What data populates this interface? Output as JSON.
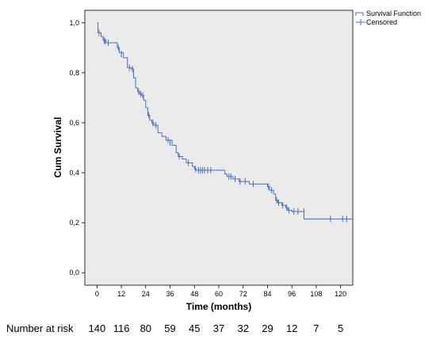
{
  "chart_data": {
    "type": "line",
    "subtype": "kaplan-meier",
    "title": "",
    "xlabel": "Time (months)",
    "ylabel": "Cum Survival",
    "xlim": [
      -6,
      126
    ],
    "ylim": [
      -0.05,
      1.05
    ],
    "x_ticks": [
      0,
      12,
      24,
      36,
      48,
      60,
      72,
      84,
      96,
      108,
      120
    ],
    "x_tick_labels": [
      "0",
      "12",
      "24",
      "36",
      "48",
      "60",
      "72",
      "84",
      "96",
      "108",
      "120"
    ],
    "y_ticks": [
      0.0,
      0.2,
      0.4,
      0.6,
      0.8,
      1.0
    ],
    "y_tick_labels": [
      "0,0",
      "0,2",
      "0,4",
      "0,6",
      "0,8",
      "1,0"
    ],
    "plot_background": "#ebebeb",
    "grid": false,
    "legend_position": "top-right",
    "series": [
      {
        "name": "Survival Function",
        "color": "#4a6fb5",
        "steps": [
          [
            0,
            1.0
          ],
          [
            0.5,
            0.96
          ],
          [
            2,
            0.945
          ],
          [
            3,
            0.93
          ],
          [
            4.5,
            0.92
          ],
          [
            10,
            0.9
          ],
          [
            11,
            0.88
          ],
          [
            13,
            0.86
          ],
          [
            15,
            0.82
          ],
          [
            17,
            0.815
          ],
          [
            18,
            0.78
          ],
          [
            19,
            0.74
          ],
          [
            20,
            0.725
          ],
          [
            21,
            0.715
          ],
          [
            22,
            0.71
          ],
          [
            23,
            0.69
          ],
          [
            24,
            0.66
          ],
          [
            25,
            0.63
          ],
          [
            26,
            0.61
          ],
          [
            27,
            0.6
          ],
          [
            28,
            0.59
          ],
          [
            30,
            0.56
          ],
          [
            32,
            0.545
          ],
          [
            34,
            0.53
          ],
          [
            37,
            0.51
          ],
          [
            39,
            0.48
          ],
          [
            40,
            0.465
          ],
          [
            42,
            0.455
          ],
          [
            44,
            0.44
          ],
          [
            47,
            0.425
          ],
          [
            48,
            0.415
          ],
          [
            49,
            0.41
          ],
          [
            63,
            0.395
          ],
          [
            64,
            0.385
          ],
          [
            67,
            0.375
          ],
          [
            70,
            0.365
          ],
          [
            75,
            0.355
          ],
          [
            84,
            0.345
          ],
          [
            85,
            0.33
          ],
          [
            87,
            0.315
          ],
          [
            88,
            0.29
          ],
          [
            89,
            0.28
          ],
          [
            91,
            0.27
          ],
          [
            93,
            0.26
          ],
          [
            94,
            0.25
          ],
          [
            96,
            0.245
          ],
          [
            102,
            0.215
          ],
          [
            126,
            0.215
          ]
        ]
      },
      {
        "name": "Censored",
        "color": "#4a6fb5",
        "points": [
          [
            1,
            0.96
          ],
          [
            3.5,
            0.93
          ],
          [
            4,
            0.925
          ],
          [
            5.5,
            0.92
          ],
          [
            10.5,
            0.9
          ],
          [
            12,
            0.875
          ],
          [
            16,
            0.82
          ],
          [
            17.5,
            0.815
          ],
          [
            20.5,
            0.725
          ],
          [
            21.5,
            0.715
          ],
          [
            22.5,
            0.71
          ],
          [
            25.5,
            0.63
          ],
          [
            27.5,
            0.6
          ],
          [
            29,
            0.59
          ],
          [
            35,
            0.53
          ],
          [
            36,
            0.52
          ],
          [
            40.5,
            0.465
          ],
          [
            45,
            0.44
          ],
          [
            48.5,
            0.415
          ],
          [
            50,
            0.41
          ],
          [
            51,
            0.41
          ],
          [
            52,
            0.41
          ],
          [
            53,
            0.41
          ],
          [
            54.5,
            0.41
          ],
          [
            56,
            0.41
          ],
          [
            65,
            0.385
          ],
          [
            66,
            0.385
          ],
          [
            68,
            0.375
          ],
          [
            70.5,
            0.365
          ],
          [
            73,
            0.365
          ],
          [
            77,
            0.355
          ],
          [
            84.5,
            0.345
          ],
          [
            86,
            0.33
          ],
          [
            88.5,
            0.29
          ],
          [
            89.5,
            0.28
          ],
          [
            91.5,
            0.27
          ],
          [
            93.5,
            0.26
          ],
          [
            94.5,
            0.25
          ],
          [
            97,
            0.245
          ],
          [
            99,
            0.245
          ],
          [
            102,
            0.245
          ],
          [
            115,
            0.215
          ],
          [
            121,
            0.215
          ],
          [
            123,
            0.215
          ]
        ]
      }
    ],
    "risk_table": {
      "title": "Number at risk",
      "times": [
        0,
        12,
        24,
        36,
        48,
        60,
        72,
        84,
        96,
        108,
        120
      ],
      "values": [
        "140",
        "116",
        "80",
        "59",
        "45",
        "37",
        "32",
        "29",
        "12",
        "7",
        "5"
      ]
    }
  }
}
